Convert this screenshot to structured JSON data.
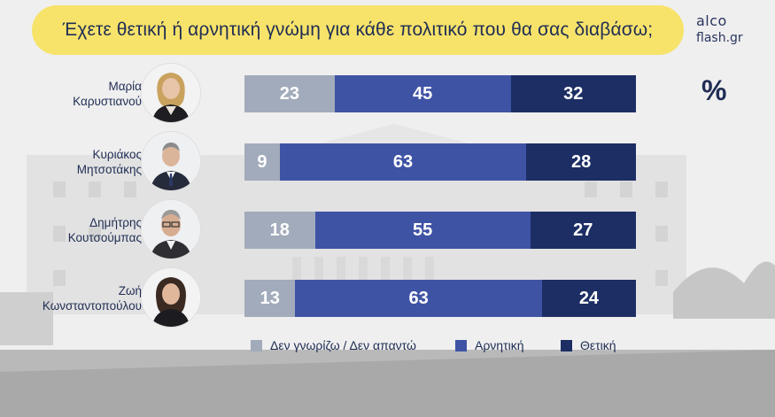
{
  "header": {
    "question": "Έχετε θετική ή αρνητική γνώμη για κάθε πολιτικό που θα σας διαβάσω;",
    "brand_top": "alco",
    "brand_bottom": "flash.gr"
  },
  "unit_label": "%",
  "colors": {
    "dont_know": "#a2abbb",
    "negative": "#3f53a5",
    "positive": "#1c2e64",
    "title_bg": "#f7e36a"
  },
  "people": [
    {
      "line1": "Μαρία",
      "line2": "Καρυστιανού"
    },
    {
      "line1": "Κυριάκος",
      "line2": "Μητσοτάκης"
    },
    {
      "line1": "Δημήτρης",
      "line2": "Κουτσούμπας"
    },
    {
      "line1": "Ζωή",
      "line2": "Κωνσταντοπούλου"
    }
  ],
  "chart_data": {
    "type": "bar",
    "orientation": "horizontal",
    "stacked": true,
    "title": "Έχετε θετική ή αρνητική γνώμη για κάθε πολιτικό που θα σας διαβάσω;",
    "categories": [
      "Μαρία Καρυστιανού",
      "Κυριάκος Μητσοτάκης",
      "Δημήτρης Κουτσούμπας",
      "Ζωή Κωνσταντοπούλου"
    ],
    "series": [
      {
        "name": "Δεν γνωρίζω / Δεν απαντώ",
        "values": [
          23,
          9,
          18,
          13
        ]
      },
      {
        "name": "Αρνητική",
        "values": [
          45,
          63,
          55,
          63
        ]
      },
      {
        "name": "Θετική",
        "values": [
          32,
          28,
          27,
          24
        ]
      }
    ],
    "unit": "%",
    "legend_position": "bottom",
    "grid": false
  }
}
